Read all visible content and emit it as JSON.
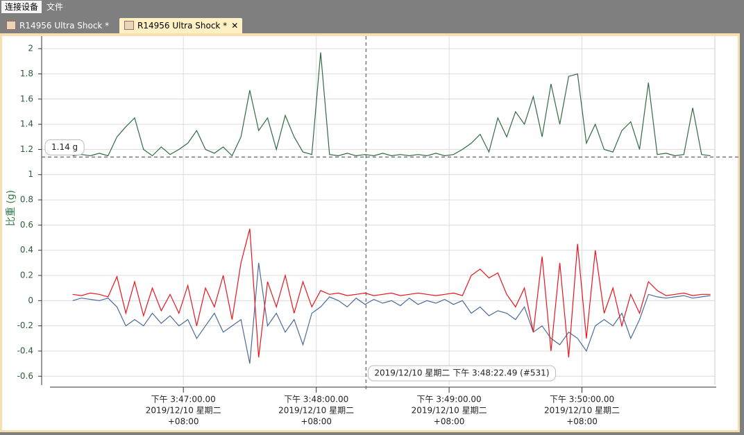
{
  "menu": [
    "连接设备",
    "文件"
  ],
  "tabs": [
    "R14956 Ultra Shock *",
    "R14956 Ultra Shock *"
  ],
  "chart_data": {
    "type": "line",
    "y_label": "比重 (g)",
    "x": [
      "15:46:10",
      "15:46:14",
      "15:46:18",
      "15:46:22",
      "15:46:26",
      "15:46:30",
      "15:46:34",
      "15:46:38",
      "15:46:42",
      "15:46:46",
      "15:46:50",
      "15:46:54",
      "15:46:58",
      "15:47:02",
      "15:47:06",
      "15:47:10",
      "15:47:14",
      "15:47:18",
      "15:47:22",
      "15:47:26",
      "15:47:30",
      "15:47:34",
      "15:47:38",
      "15:47:42",
      "15:47:46",
      "15:47:50",
      "15:47:54",
      "15:47:58",
      "15:48:02",
      "15:48:06",
      "15:48:10",
      "15:48:14",
      "15:48:18",
      "15:48:22",
      "15:48:26",
      "15:48:30",
      "15:48:34",
      "15:48:38",
      "15:48:42",
      "15:48:46",
      "15:48:50",
      "15:48:54",
      "15:48:58",
      "15:49:02",
      "15:49:06",
      "15:49:10",
      "15:49:14",
      "15:49:18",
      "15:49:22",
      "15:49:26",
      "15:49:30",
      "15:49:34",
      "15:49:38",
      "15:49:42",
      "15:49:46",
      "15:49:50",
      "15:49:54",
      "15:49:58",
      "15:50:02",
      "15:50:06",
      "15:50:10",
      "15:50:14",
      "15:50:18",
      "15:50:22",
      "15:50:26",
      "15:50:30",
      "15:50:34",
      "15:50:38",
      "15:50:42",
      "15:50:46",
      "15:50:50",
      "15:50:54",
      "15:50:58"
    ],
    "series": [
      {
        "color": "#2f6b3f",
        "values": [
          1.15,
          1.16,
          1.15,
          1.17,
          1.15,
          1.3,
          1.38,
          1.45,
          1.2,
          1.15,
          1.22,
          1.16,
          1.2,
          1.25,
          1.35,
          1.2,
          1.17,
          1.22,
          1.15,
          1.3,
          1.67,
          1.35,
          1.45,
          1.2,
          1.47,
          1.3,
          1.18,
          1.16,
          1.97,
          1.16,
          1.15,
          1.17,
          1.15,
          1.16,
          1.15,
          1.17,
          1.15,
          1.16,
          1.15,
          1.16,
          1.15,
          1.17,
          1.15,
          1.16,
          1.2,
          1.25,
          1.32,
          1.18,
          1.45,
          1.3,
          1.5,
          1.4,
          1.62,
          1.3,
          1.72,
          1.4,
          1.78,
          1.8,
          1.25,
          1.4,
          1.2,
          1.18,
          1.35,
          1.42,
          1.2,
          1.73,
          1.16,
          1.17,
          1.15,
          1.16,
          1.53,
          1.16,
          1.15
        ]
      },
      {
        "color": "#4a6a9a",
        "values": [
          0,
          0.02,
          0.01,
          0,
          0.02,
          -0.05,
          -0.2,
          -0.15,
          -0.2,
          -0.1,
          -0.18,
          -0.12,
          -0.2,
          -0.15,
          -0.3,
          -0.2,
          -0.1,
          -0.25,
          -0.2,
          -0.15,
          -0.5,
          0.3,
          -0.2,
          -0.1,
          -0.25,
          -0.15,
          -0.35,
          -0.1,
          -0.05,
          0.03,
          0,
          -0.05,
          0.02,
          -0.03,
          0.01,
          -0.02,
          0,
          -0.04,
          0.02,
          -0.03,
          0,
          -0.02,
          0.01,
          -0.03,
          0,
          -0.1,
          -0.05,
          -0.12,
          -0.08,
          -0.1,
          -0.15,
          -0.05,
          -0.25,
          -0.2,
          -0.3,
          -0.35,
          -0.25,
          -0.3,
          -0.4,
          -0.2,
          -0.15,
          -0.2,
          -0.1,
          -0.3,
          -0.15,
          0.05,
          0.03,
          0.02,
          0.03,
          0.04,
          0.02,
          0.03,
          0.04
        ]
      },
      {
        "color": "#e8141c",
        "values": [
          0.05,
          0.04,
          0.06,
          0.05,
          0.03,
          0.19,
          -0.1,
          0.15,
          -0.12,
          0.1,
          -0.08,
          0.05,
          -0.1,
          0.12,
          -0.2,
          0.1,
          -0.05,
          0.2,
          -0.15,
          0.3,
          0.57,
          -0.45,
          0.15,
          -0.05,
          0.2,
          -0.1,
          0.15,
          -0.05,
          0.08,
          0.05,
          0.06,
          0.04,
          0.05,
          0.06,
          0.04,
          0.05,
          0.06,
          0.04,
          0.05,
          0.06,
          0.05,
          0.04,
          0.05,
          0.06,
          0.04,
          0.2,
          0.25,
          0.18,
          0.22,
          0.05,
          -0.05,
          0.1,
          -0.25,
          0.35,
          -0.4,
          0.3,
          -0.45,
          0.45,
          -0.3,
          0.4,
          -0.1,
          0.1,
          -0.2,
          0.05,
          -0.1,
          0.15,
          0.08,
          0.04,
          0.05,
          0.06,
          0.04,
          0.05,
          0.05
        ]
      }
    ],
    "xlim": [
      "15:45:56",
      "15:51:00"
    ],
    "xticks": [
      {
        "value": "15:47:00",
        "label": [
          "下午 3:47:00.00",
          "2019/12/10 星期二",
          "+08:00"
        ]
      },
      {
        "value": "15:48:00",
        "label": [
          "下午 3:48:00.00",
          "2019/12/10 星期二",
          "+08:00"
        ]
      },
      {
        "value": "15:49:00",
        "label": [
          "下午 3:49:00.00",
          "2019/12/10 星期二",
          "+08:00"
        ]
      },
      {
        "value": "15:50:00",
        "label": [
          "下午 3:50:00.00",
          "2019/12/10 星期二",
          "+08:00"
        ]
      }
    ],
    "ylim": [
      -0.67,
      2.1
    ],
    "yticks": [
      -0.6,
      -0.4,
      -0.2,
      0,
      0.2,
      0.4,
      0.6,
      0.8,
      1,
      1.2,
      1.4,
      1.6,
      1.8,
      2
    ],
    "grid": true,
    "reference_line": {
      "value": 1.14,
      "label": "1.14 g"
    },
    "cursor": {
      "x": "15:48:22.49",
      "label": "2019/12/10 星期二 下午 3:48:22.49 (#531)"
    }
  }
}
